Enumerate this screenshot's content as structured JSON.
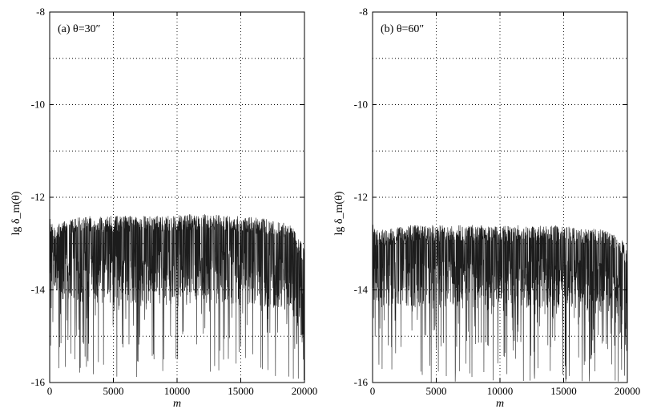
{
  "chart_data": [
    {
      "type": "line",
      "title": "(a) θ=30″",
      "xlabel": "m",
      "ylabel": "lg δ_m(θ)",
      "xlim": [
        0,
        20000
      ],
      "ylim": [
        -16,
        -8
      ],
      "xticks": [
        "0",
        "5000",
        "10000",
        "15000",
        "20000"
      ],
      "yticks": [
        "-16",
        "-14",
        "-12",
        "-10",
        "-8"
      ],
      "grid": true,
      "series": [
        {
          "envelope": {
            "m": [
              0,
              200,
              1000,
              3000,
              6000,
              9000,
              12000,
              15000,
              18000,
              19000,
              19600,
              20000
            ],
            "upper": [
              -12.2,
              -12.6,
              -12.5,
              -12.4,
              -12.4,
              -12.4,
              -12.35,
              -12.4,
              -12.5,
              -12.6,
              -12.9,
              -13.1
            ],
            "typical_low": [
              -13.7,
              -14.0,
              -14.2,
              -14.3,
              -14.3,
              -14.3,
              -14.3,
              -14.3,
              -14.4,
              -14.6,
              -15.0,
              -15.4
            ],
            "deep_low": [
              -15.2,
              -15.5,
              -15.8,
              -15.9,
              -15.9,
              -15.9,
              -15.9,
              -15.9,
              -15.9,
              -16.0,
              -16.0,
              -16.0
            ]
          }
        }
      ]
    },
    {
      "type": "line",
      "title": "(b) θ=60″",
      "xlabel": "m",
      "ylabel": "lg δ_m(θ)",
      "xlim": [
        0,
        20000
      ],
      "ylim": [
        -16,
        -8
      ],
      "xticks": [
        "0",
        "5000",
        "10000",
        "15000",
        "20000"
      ],
      "yticks": [
        "-16",
        "-14",
        "-12",
        "-10",
        "-8"
      ],
      "grid": true,
      "series": [
        {
          "envelope": {
            "m": [
              0,
              200,
              1000,
              3000,
              6000,
              9000,
              12000,
              15000,
              18000,
              19000,
              19600,
              20000
            ],
            "upper": [
              -12.4,
              -12.7,
              -12.7,
              -12.6,
              -12.6,
              -12.6,
              -12.6,
              -12.6,
              -12.7,
              -12.8,
              -12.9,
              -13.2
            ],
            "typical_low": [
              -14.0,
              -14.3,
              -14.4,
              -14.4,
              -14.4,
              -14.4,
              -14.4,
              -14.4,
              -14.5,
              -14.7,
              -15.0,
              -15.4
            ],
            "deep_low": [
              -15.4,
              -15.6,
              -15.9,
              -16.0,
              -16.0,
              -16.0,
              -16.0,
              -16.0,
              -16.0,
              -16.0,
              -16.0,
              -16.0
            ]
          }
        }
      ]
    }
  ]
}
